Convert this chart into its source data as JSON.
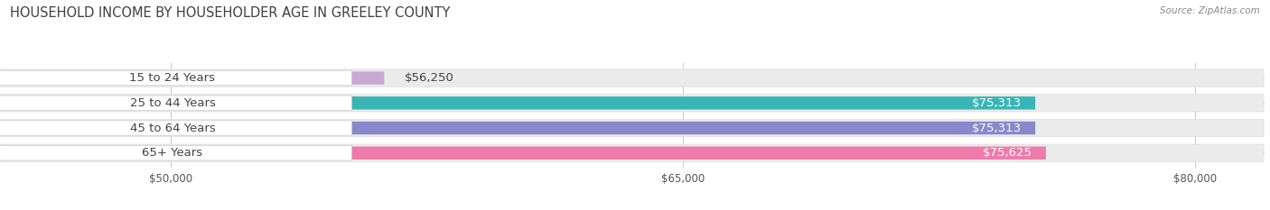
{
  "title": "HOUSEHOLD INCOME BY HOUSEHOLDER AGE IN GREELEY COUNTY",
  "source": "Source: ZipAtlas.com",
  "categories": [
    "15 to 24 Years",
    "25 to 44 Years",
    "45 to 64 Years",
    "65+ Years"
  ],
  "values": [
    56250,
    75313,
    75313,
    75625
  ],
  "bar_colors": [
    "#c9a8d4",
    "#3ab5b5",
    "#8888cc",
    "#f07aaa"
  ],
  "bar_labels": [
    "$56,250",
    "$75,313",
    "$75,313",
    "$75,625"
  ],
  "xlim_min": 45000,
  "xlim_max": 82000,
  "xticks": [
    50000,
    65000,
    80000
  ],
  "xtick_labels": [
    "$50,000",
    "$65,000",
    "$80,000"
  ],
  "bg_color": "#ffffff",
  "bar_bg_color": "#ebebeb",
  "title_fontsize": 10.5,
  "label_fontsize": 9.5,
  "tick_fontsize": 8.5
}
